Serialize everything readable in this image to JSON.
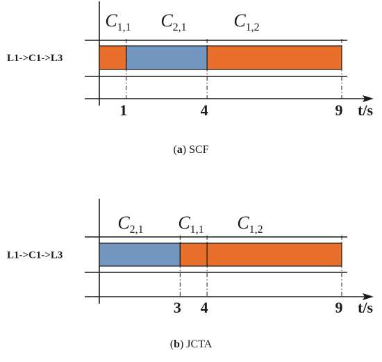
{
  "colors": {
    "orange": "#E8702A",
    "blue": "#7397C1",
    "line": "#1a1a1a",
    "background": "#ffffff"
  },
  "panels": [
    {
      "id": "a",
      "caption_letter": "a",
      "caption_text": "SCF",
      "row_label": "L1->C1->L3",
      "axis_unit": "t/s",
      "time_max": 9,
      "ticks": [
        1,
        4,
        9
      ],
      "segments": [
        {
          "label": "C",
          "sub": "1,1",
          "start": 0,
          "end": 1,
          "color": "orange"
        },
        {
          "label": "C",
          "sub": "2,1",
          "start": 1,
          "end": 4,
          "color": "blue"
        },
        {
          "label": "C",
          "sub": "1,2",
          "start": 4,
          "end": 9,
          "color": "orange"
        }
      ]
    },
    {
      "id": "b",
      "caption_letter": "b",
      "caption_text": "JCTA",
      "row_label": "L1->C1->L3",
      "axis_unit": "t/s",
      "time_max": 9,
      "ticks": [
        3,
        4,
        9
      ],
      "segments": [
        {
          "label": "C",
          "sub": "2,1",
          "start": 0,
          "end": 3,
          "color": "blue"
        },
        {
          "label": "C",
          "sub": "1,1",
          "start": 3,
          "end": 4,
          "color": "orange"
        },
        {
          "label": "C",
          "sub": "1,2",
          "start": 4,
          "end": 9,
          "color": "orange"
        }
      ]
    }
  ]
}
